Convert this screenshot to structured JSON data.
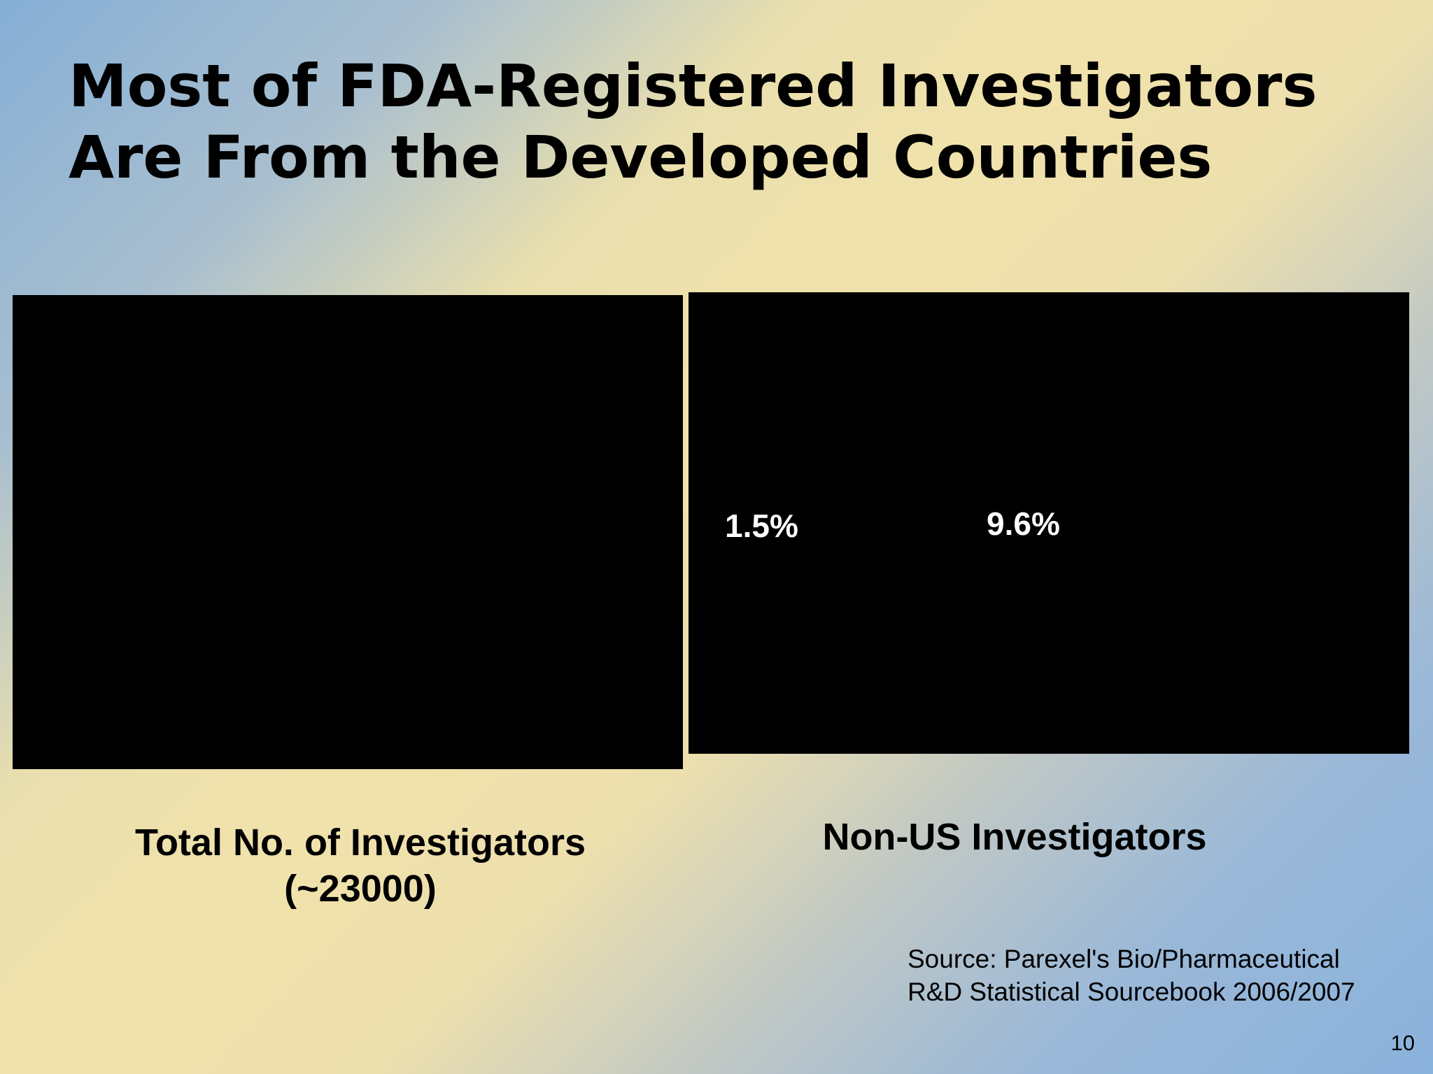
{
  "slide": {
    "title_line1": "Most of FDA-Registered Investigators",
    "title_line2": "Are From the Developed Countries",
    "source_line1": "Source: Parexel's Bio/Pharmaceutical",
    "source_line2": "R&D Statistical Sourcebook 2006/2007",
    "page_number": "10"
  },
  "chart_data": [
    {
      "type": "pie",
      "caption_line1": "Total No. of Investigators",
      "caption_line2": "(~23000)",
      "labels": [],
      "values": [],
      "panel_color": "#000000"
    },
    {
      "type": "pie",
      "caption": "Non-US Investigators",
      "data_labels": [
        "1.5%",
        "9.6%"
      ],
      "values": [
        1.5,
        9.6
      ],
      "panel_color": "#000000"
    }
  ]
}
